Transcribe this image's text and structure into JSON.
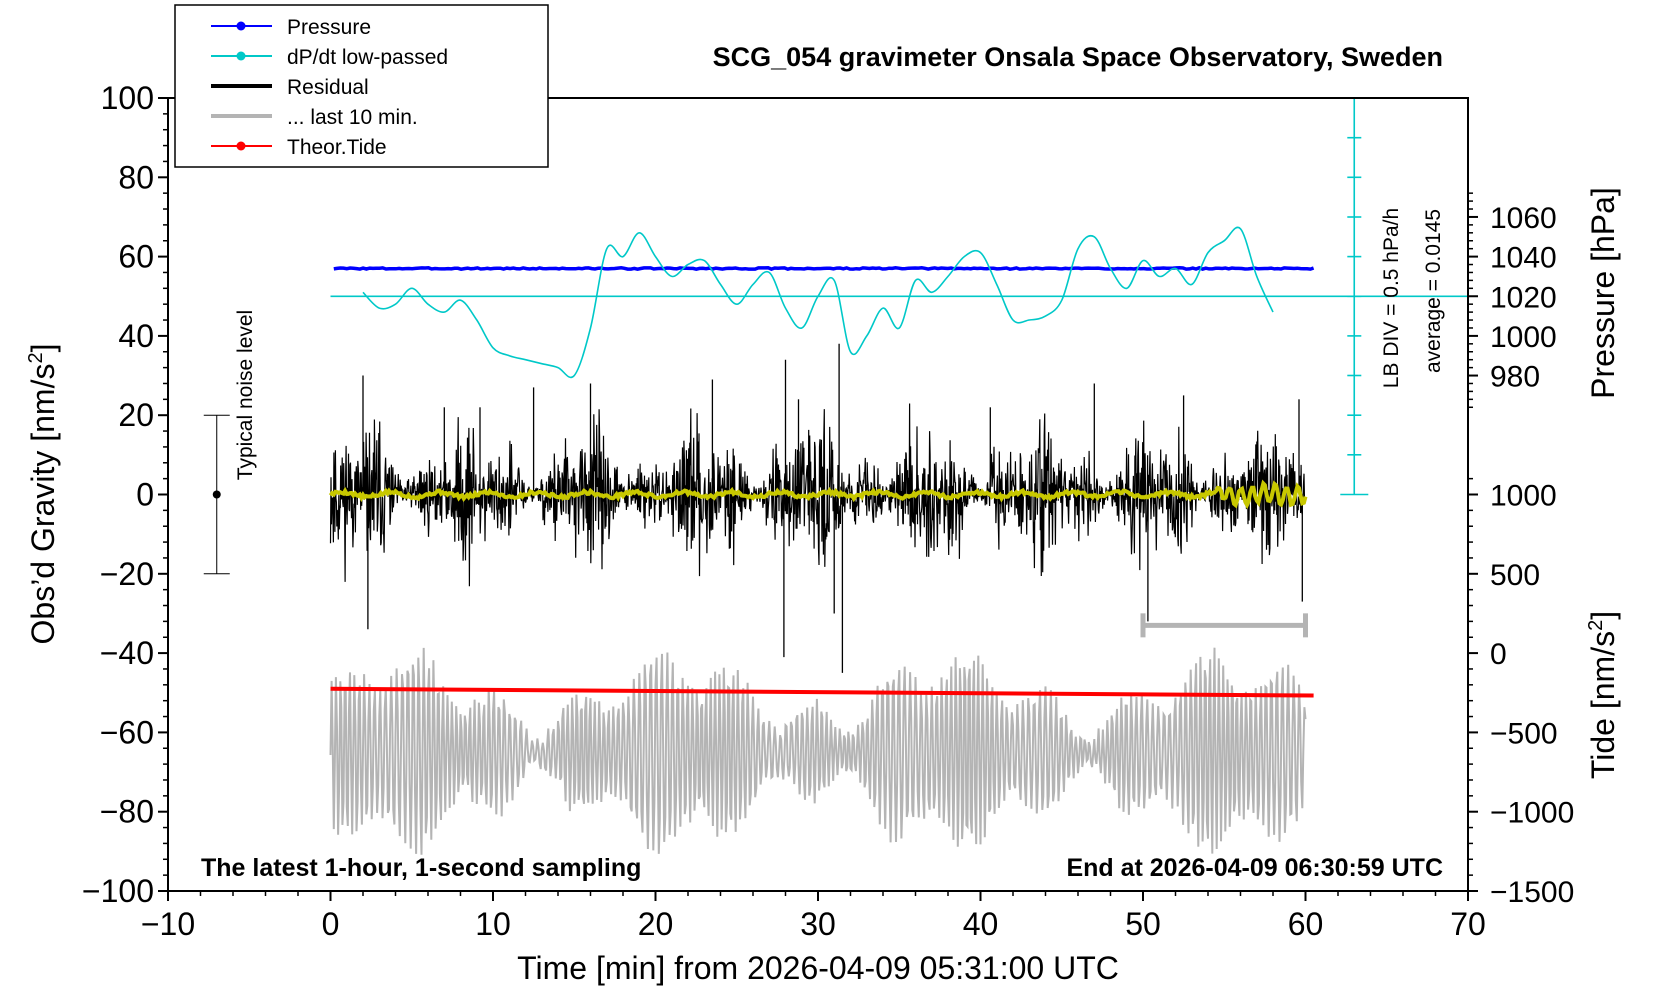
{
  "chart_data": {
    "type": "line",
    "title": "SCG_054 gravimeter Onsala Space Observatory, Sweden",
    "xlabel": "Time [min] from 2026-04-09 05:31:00 UTC",
    "ylabel_left_main": "Obs’d Gravity [nm/s",
    "ylabel_left_sup": "2",
    "ylabel_left_end": "]",
    "ylabel_right_pressure": "Pressure [hPa]",
    "ylabel_right_tide_main": "Tide [nm/s",
    "ylabel_right_tide_sup": "2",
    "ylabel_right_tide_end": "]",
    "xlim": [
      -10,
      70
    ],
    "ylim": [
      -100,
      100
    ],
    "x_ticks": [
      "−10",
      "0",
      "10",
      "20",
      "30",
      "40",
      "50",
      "60",
      "70"
    ],
    "y_ticks": [
      "−100",
      "−80",
      "−60",
      "−40",
      "−20",
      "0",
      "20",
      "40",
      "60",
      "80",
      "100"
    ],
    "pressure_ticks": [
      "980",
      "1000",
      "1020",
      "1040",
      "1060"
    ],
    "pressure_range": [
      960,
      1080
    ],
    "tide_ticks": [
      "−1500",
      "−1000",
      "−500",
      "0",
      "500",
      "1000"
    ],
    "tide_range": [
      -1500,
      1500
    ],
    "legend": [
      {
        "label": "Pressure",
        "color": "#0000ff",
        "marker": true
      },
      {
        "label": "dP/dt low-passed",
        "color": "#00c8c8",
        "marker": true
      },
      {
        "label": "Residual",
        "color": "#000000",
        "marker": false
      },
      {
        "label": "... last 10 min.",
        "color": "#b4b4b4",
        "marker": false
      },
      {
        "label": "Theor.Tide",
        "color": "#ff0000",
        "marker": true
      }
    ],
    "noise_label": "Typical noise level",
    "noise_bar": {
      "x": -7,
      "center": 0,
      "low": -20,
      "high": 20
    },
    "lb_div_label": "LB DIV = 0.5 hPa/h",
    "average_label": "average = 0.0145",
    "bottom_left_note": "The latest 1-hour, 1-second sampling",
    "bottom_right_note": "End at 2026-04-09 06:30:59 UTC",
    "colors": {
      "pressure": "#0000ff",
      "dpdt": "#00c8c8",
      "residual": "#000000",
      "smoothed_residual": "#c8c800",
      "last10": "#b4b4b4",
      "tide": "#ff0000"
    },
    "series": [
      {
        "name": "Pressure",
        "x": [
          0.2,
          60.5
        ],
        "values": [
          57.0,
          57.0
        ]
      },
      {
        "name": "dP/dt low-passed",
        "x": [
          2,
          3,
          4,
          5,
          6,
          7,
          8,
          9,
          10,
          11,
          12,
          13,
          14,
          15,
          16,
          17,
          18,
          19,
          20,
          21,
          22,
          23,
          24,
          25,
          26,
          27,
          28,
          29,
          30,
          31,
          32,
          33,
          34,
          35,
          36,
          37,
          38,
          39,
          40,
          41,
          42,
          43,
          44,
          45,
          46,
          47,
          48,
          49,
          50,
          51,
          52,
          53,
          54,
          55,
          56,
          57,
          58
        ],
        "values": [
          51,
          47,
          48,
          52,
          48,
          46,
          49,
          44,
          37,
          35,
          34,
          33,
          32,
          30,
          42,
          62,
          60,
          66,
          60,
          55,
          58,
          59,
          53,
          48,
          53,
          56,
          47,
          42,
          50,
          54,
          36,
          40,
          47,
          42,
          54,
          51,
          55,
          60,
          61,
          53,
          44,
          44,
          45,
          49,
          62,
          65,
          57,
          52,
          59,
          55,
          57,
          53,
          61,
          64,
          67,
          55,
          46
        ]
      },
      {
        "name": "Theor.Tide",
        "x": [
          0,
          60.5
        ],
        "values": [
          -49.0,
          -50.7
        ]
      }
    ],
    "residual_envelope": {
      "x_start": 0,
      "x_end": 60,
      "typical_amplitude": 18,
      "extremes": [
        40,
        -44
      ]
    },
    "last10_band": {
      "x_start": 50,
      "x_end": 60,
      "level": -33
    }
  }
}
